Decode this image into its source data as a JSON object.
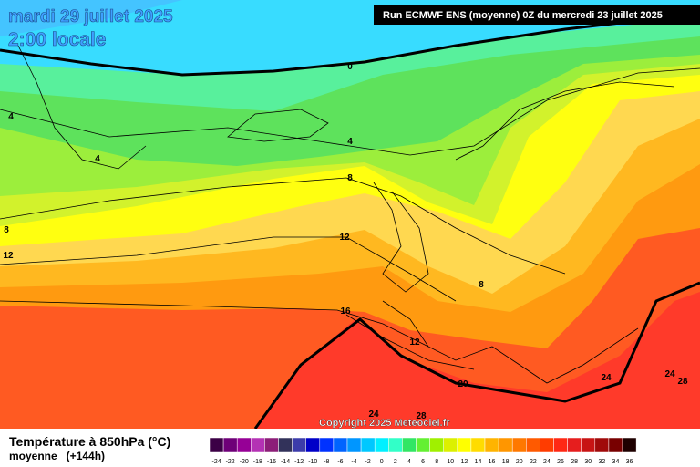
{
  "header": {
    "date": "mardi 29 juillet 2025",
    "time": "2:00 locale",
    "run": "Run ECMWF ENS (moyenne) 0Z du mercredi 23 juillet 2025"
  },
  "copyright": "Copyright 2025 Meteociel.fr",
  "contour_labels": [
    "0",
    "4",
    "4",
    "4",
    "8",
    "8",
    "12",
    "12",
    "16",
    "12",
    "8",
    "20",
    "24",
    "24",
    "28",
    "24",
    "28"
  ],
  "legend": {
    "title": "Température à 850hPa (°C)",
    "subtitle": "moyenne   (+144h)",
    "values": [
      -24,
      -22,
      -20,
      -18,
      -16,
      -14,
      -12,
      -10,
      -8,
      -6,
      -4,
      -2,
      0,
      2,
      4,
      6,
      8,
      10,
      12,
      14,
      16,
      18,
      20,
      22,
      24,
      26,
      28,
      30,
      32,
      34,
      36
    ],
    "colors": [
      "#3c0046",
      "#6e0078",
      "#960096",
      "#b432b4",
      "#8c1e78",
      "#32325a",
      "#3c3caa",
      "#0000c8",
      "#0032ff",
      "#0064ff",
      "#0096ff",
      "#00c8ff",
      "#00f0ff",
      "#32ffc8",
      "#32e664",
      "#64f032",
      "#a0f000",
      "#dcf000",
      "#ffff00",
      "#ffdc00",
      "#ffb400",
      "#ff9600",
      "#ff7800",
      "#ff5a00",
      "#ff3c00",
      "#ff2814",
      "#e61e1e",
      "#c81414",
      "#a00a0a",
      "#780000",
      "#1e0000"
    ]
  }
}
